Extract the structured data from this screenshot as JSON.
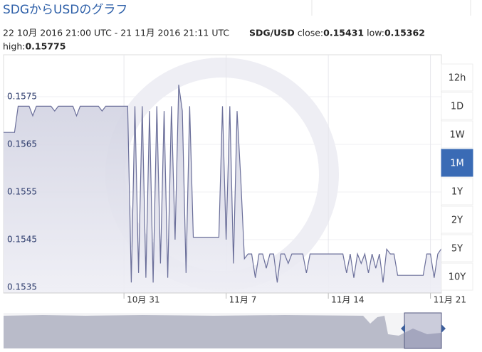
{
  "chart_data": {
    "type": "line",
    "title": "SDGからUSDのグラフ",
    "subtitle": "22 10月 2016 21:00 UTC - 21 11月 2016 21:11 UTC",
    "pair": "SDG/USD",
    "stats": [
      {
        "label": "close:",
        "value": 0.15431
      },
      {
        "label": "low:",
        "value": 0.15362
      },
      {
        "label": "high:",
        "value": 0.15775
      }
    ],
    "range_buttons": [
      "12h",
      "1D",
      "1W",
      "1M",
      "1Y",
      "2Y",
      "5Y",
      "10Y"
    ],
    "active_range": "1M",
    "categories": [
      null,
      null,
      null,
      null,
      null,
      null,
      null,
      null,
      null,
      null,
      null,
      null,
      null,
      null,
      null,
      null,
      null,
      null,
      null,
      null,
      null,
      null,
      null,
      null,
      null,
      null,
      null,
      null,
      null,
      null,
      null,
      null,
      null,
      "10月 31",
      null,
      null,
      null,
      null,
      null,
      null,
      null,
      null,
      null,
      null,
      null,
      null,
      null,
      null,
      null,
      null,
      null,
      null,
      null,
      null,
      null,
      null,
      null,
      null,
      null,
      null,
      null,
      "11月 7",
      null,
      null,
      null,
      null,
      null,
      null,
      null,
      null,
      null,
      null,
      null,
      null,
      null,
      null,
      null,
      null,
      null,
      null,
      null,
      null,
      null,
      null,
      null,
      null,
      null,
      null,
      null,
      "11月 14",
      null,
      null,
      null,
      null,
      null,
      null,
      null,
      null,
      null,
      null,
      null,
      null,
      null,
      null,
      null,
      null,
      null,
      null,
      null,
      null,
      null,
      null,
      null,
      null,
      null,
      null,
      null,
      "11月 21",
      null,
      null,
      null
    ],
    "series": [
      {
        "name": "SDG/USD",
        "color": "#6b6f9a",
        "values": [
          0.15675,
          0.15675,
          0.15675,
          0.15675,
          0.1573,
          0.1573,
          0.1573,
          0.1573,
          0.1571,
          0.1573,
          0.1573,
          0.1573,
          0.1573,
          0.1573,
          0.1572,
          0.1573,
          0.1573,
          0.1573,
          0.1573,
          0.1573,
          0.1571,
          0.1573,
          0.1573,
          0.1573,
          0.1573,
          0.1573,
          0.1573,
          0.1572,
          0.1573,
          0.1573,
          0.1573,
          0.1573,
          0.1573,
          0.1573,
          0.1573,
          0.1536,
          0.1573,
          0.1538,
          0.1573,
          0.1537,
          0.1572,
          0.1536,
          0.1573,
          0.154,
          0.1572,
          0.1537,
          0.1573,
          0.1545,
          0.15775,
          0.1572,
          0.1538,
          0.1573,
          0.15455,
          0.15455,
          0.15455,
          0.15455,
          0.15455,
          0.15455,
          0.15455,
          0.15455,
          0.1573,
          0.1545,
          0.1573,
          0.154,
          0.1572,
          0.1558,
          0.1541,
          0.1542,
          0.1542,
          0.1537,
          0.1542,
          0.1542,
          0.1539,
          0.1542,
          0.1542,
          0.1536,
          0.1542,
          0.1542,
          0.154,
          0.1542,
          0.1542,
          0.1542,
          0.1542,
          0.1538,
          0.1542,
          0.1542,
          0.1542,
          0.1542,
          0.1542,
          0.1542,
          0.1542,
          0.1542,
          0.1542,
          0.1542,
          0.1538,
          0.1542,
          0.1537,
          0.1542,
          0.154,
          0.1542,
          0.1538,
          0.1542,
          0.1539,
          0.1542,
          0.1536,
          0.1543,
          0.1542,
          0.1542,
          0.15375,
          0.15375,
          0.15375,
          0.15375,
          0.15375,
          0.15375,
          0.15375,
          0.15375,
          0.1542,
          0.1542,
          0.1537,
          0.1542,
          0.15431
        ]
      }
    ],
    "ylim": [
      0.15338,
      0.15838
    ],
    "yticks": [
      0.1535,
      0.1545,
      0.1555,
      0.1565,
      0.1575
    ],
    "grid": true
  }
}
